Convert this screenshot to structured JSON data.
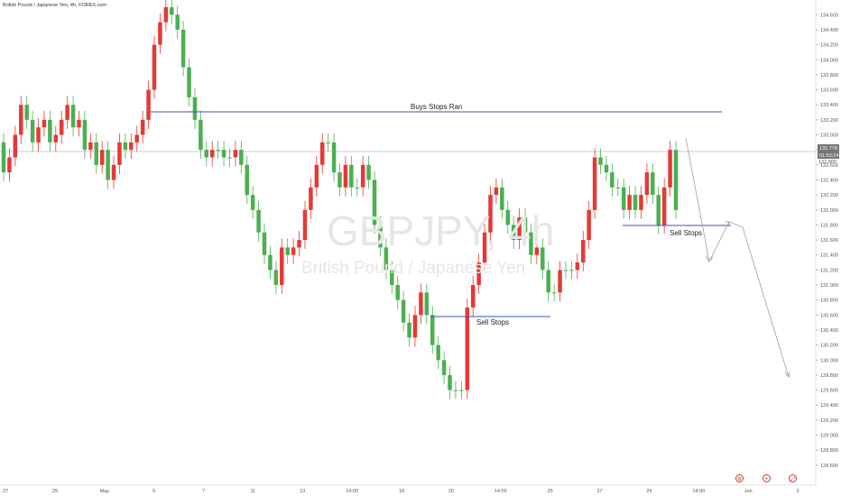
{
  "header": {
    "symbol_line": "British Pound / Japanese Yen, 4h, FOREX.com"
  },
  "watermark": {
    "symbol": "GBPJPY, 4h",
    "name": "British Pound / Japanese Yen"
  },
  "price_axis": {
    "ticks": [
      "134.600",
      "134.400",
      "134.200",
      "134.000",
      "133.800",
      "133.600",
      "133.400",
      "133.200",
      "133.000",
      "132.800",
      "132.600",
      "132.400",
      "132.200",
      "132.000",
      "131.800",
      "131.600",
      "131.400",
      "131.200",
      "131.000",
      "130.800",
      "130.600",
      "130.400",
      "130.200",
      "130.000",
      "129.800",
      "129.600",
      "129.400",
      "129.200",
      "129.000",
      "128.800",
      "128.600"
    ],
    "current_price": "132.778",
    "countdown": "01:52:24",
    "extra_label": "132.800"
  },
  "time_axis": {
    "labels": [
      "27",
      "29",
      "May",
      "5",
      "7",
      "11",
      "13",
      "14:00",
      "18",
      "20",
      "14:00",
      "25",
      "27",
      "29",
      "14:00",
      "Jun",
      "3"
    ]
  },
  "annotations": {
    "buy_stops": "Buys Stops Ran",
    "sell_stops_low": "Sell Stops",
    "sell_stops_high": "Sell Stops"
  },
  "colors": {
    "up": "#4caf50",
    "down": "#e53935",
    "level_line": "#3f51b5",
    "price_line": "#bdbdbd",
    "path": "#9e9e9e",
    "price_tag": "#757575"
  },
  "bottom_icons": [
    "settings-icon",
    "zoom-icon",
    "fullscreen-icon"
  ],
  "chart_data": {
    "type": "candlestick",
    "ylim": [
      128.55,
      134.7
    ],
    "closes": [
      132.9,
      132.5,
      132.7,
      133.0,
      133.4,
      133.2,
      132.9,
      133.1,
      133.2,
      132.9,
      133.0,
      133.2,
      133.4,
      133.1,
      133.2,
      132.8,
      132.9,
      132.6,
      132.8,
      132.4,
      132.6,
      132.9,
      132.8,
      132.9,
      133.0,
      133.2,
      133.6,
      134.2,
      134.5,
      134.7,
      134.6,
      134.4,
      133.9,
      133.5,
      133.2,
      132.8,
      132.7,
      132.8,
      132.8,
      132.7,
      132.7,
      132.8,
      132.6,
      132.2,
      132.0,
      131.7,
      131.4,
      131.2,
      131.0,
      131.5,
      131.4,
      131.5,
      131.6,
      132.0,
      132.3,
      132.6,
      132.9,
      132.9,
      132.5,
      132.3,
      132.6,
      132.3,
      132.3,
      132.6,
      132.4,
      131.8,
      131.5,
      131.2,
      131.0,
      130.8,
      130.5,
      130.3,
      130.6,
      130.9,
      130.6,
      130.2,
      130.0,
      129.8,
      129.6,
      129.6,
      129.6,
      130.7,
      131.0,
      131.3,
      131.7,
      132.2,
      132.3,
      132.0,
      131.8,
      131.6,
      131.9,
      131.7,
      131.4,
      131.5,
      131.2,
      130.9,
      130.9,
      131.2,
      131.2,
      131.2,
      131.3,
      131.6,
      132.0,
      132.7,
      132.6,
      132.5,
      132.3,
      132.3,
      132.0,
      132.2,
      132.0,
      132.2,
      132.5,
      132.2,
      131.8,
      132.3,
      132.8
    ],
    "opens": [
      132.5,
      132.7,
      133.0,
      133.4,
      133.2,
      132.9,
      133.1,
      133.2,
      132.9,
      133.0,
      133.2,
      133.4,
      133.1,
      133.2,
      132.8,
      132.9,
      132.6,
      132.8,
      132.4,
      132.6,
      132.9,
      132.8,
      132.9,
      133.0,
      133.2,
      133.6,
      134.2,
      134.5,
      134.7,
      134.6,
      134.4,
      133.9,
      133.5,
      133.2,
      132.8,
      132.7,
      132.8,
      132.8,
      132.7,
      132.7,
      132.8,
      132.6,
      132.2,
      132.0,
      131.7,
      131.4,
      131.2,
      131.0,
      131.5,
      131.4,
      131.5,
      131.6,
      132.0,
      132.3,
      132.6,
      132.9,
      132.9,
      132.5,
      132.3,
      132.6,
      132.3,
      132.3,
      132.6,
      132.4,
      131.8,
      131.5,
      131.2,
      131.0,
      130.8,
      130.5,
      130.3,
      130.6,
      130.9,
      130.6,
      130.2,
      130.0,
      129.8,
      129.6,
      129.6,
      129.6,
      130.7,
      131.0,
      131.3,
      131.7,
      132.2,
      132.3,
      132.0,
      131.8,
      131.6,
      131.9,
      131.7,
      131.4,
      131.5,
      131.2,
      130.9,
      130.9,
      131.2,
      131.2,
      131.2,
      131.3,
      131.6,
      132.0,
      132.7,
      132.6,
      132.5,
      132.3,
      132.3,
      132.0,
      132.2,
      132.0,
      132.2,
      132.5,
      132.2,
      131.8,
      132.3,
      132.8,
      132.0
    ]
  }
}
